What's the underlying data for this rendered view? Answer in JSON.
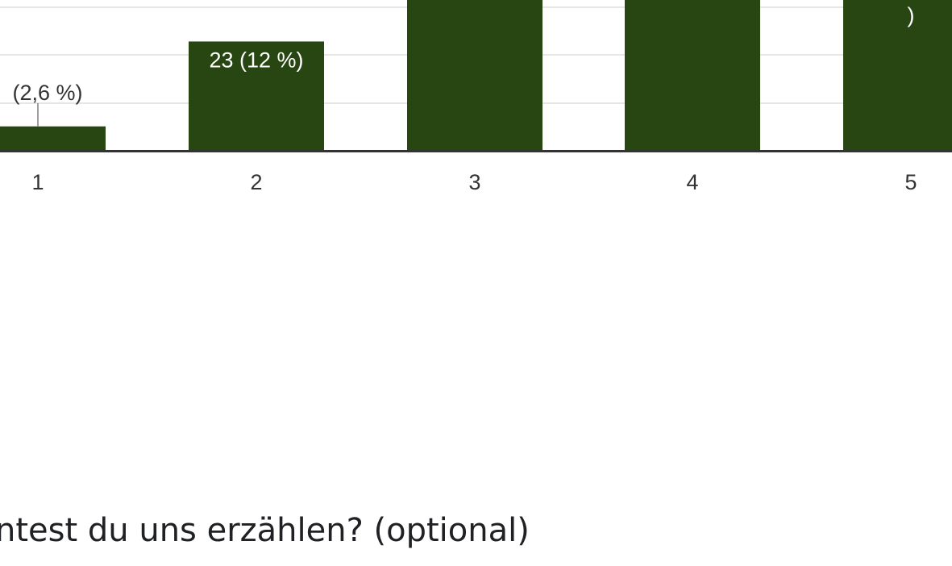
{
  "chart_data": {
    "type": "bar",
    "categories": [
      "1",
      "2",
      "3",
      "4",
      "5"
    ],
    "bar_labels": [
      "(2,6 %)",
      "23 (12 %)",
      "",
      "",
      ")"
    ],
    "values": [
      5,
      23,
      null,
      null,
      null
    ],
    "bar_color": "#274611",
    "grid": true,
    "title": "",
    "xlabel": "",
    "ylabel": ""
  },
  "next_question": {
    "title": "ntest du uns erzählen? (optional)"
  },
  "colors": {
    "bar": "#274611",
    "baseline": "#333333",
    "grid": "#e6e6e6",
    "label_inside": "#ffffff",
    "label_outside": "#333333",
    "leader_line": "#9e9e9e"
  }
}
